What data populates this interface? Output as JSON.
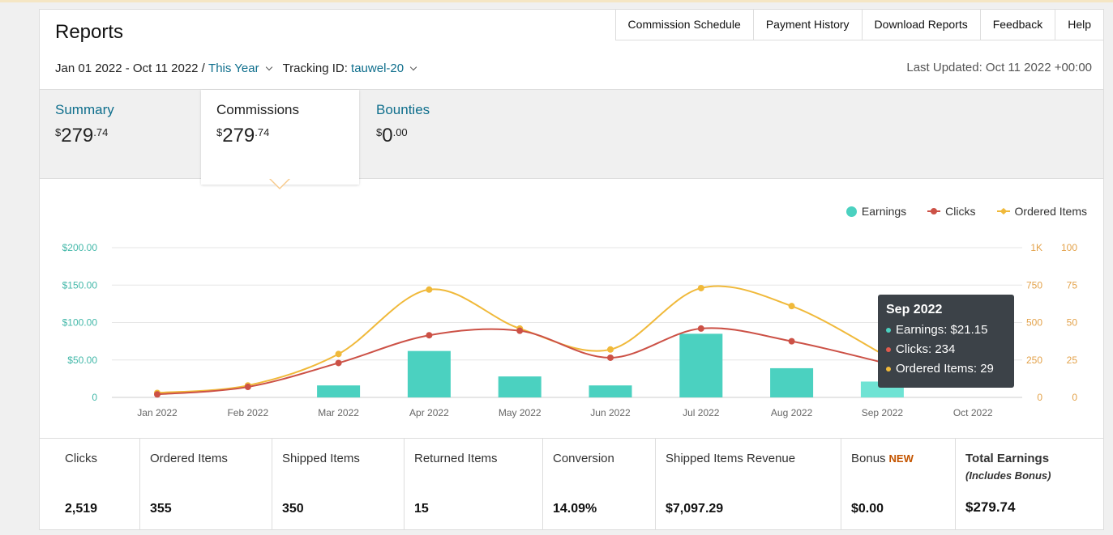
{
  "header": {
    "title": "Reports",
    "nav": [
      "Commission Schedule",
      "Payment History",
      "Download Reports",
      "Feedback",
      "Help"
    ]
  },
  "filters": {
    "date_range": "Jan 01 2022 - Oct 11 2022 /",
    "period": "This Year",
    "tracking_label": "Tracking ID:",
    "tracking_id": "tauwel-20",
    "last_updated": "Last Updated: Oct 11 2022 +00:00"
  },
  "tabs": [
    {
      "label": "Summary",
      "dollar": "$",
      "whole": "279",
      "cents": ".74"
    },
    {
      "label": "Commissions",
      "dollar": "$",
      "whole": "279",
      "cents": ".74"
    },
    {
      "label": "Bounties",
      "dollar": "$",
      "whole": "0",
      "cents": ".00"
    }
  ],
  "colors": {
    "earnings": "#4bd1c0",
    "clicks": "#cc5146",
    "ordered": "#f0b93a",
    "link": "#0e6e8c"
  },
  "chart_data": {
    "type": "bar+line",
    "categories": [
      "Jan 2022",
      "Feb 2022",
      "Mar 2022",
      "Apr 2022",
      "May 2022",
      "Jun 2022",
      "Jul 2022",
      "Aug 2022",
      "Sep 2022",
      "Oct 2022"
    ],
    "series": [
      {
        "name": "Earnings",
        "type": "bar",
        "axis": "left",
        "values": [
          0,
          0,
          16,
          62,
          28,
          16,
          85,
          39,
          21.15,
          0
        ]
      },
      {
        "name": "Clicks",
        "type": "line",
        "axis": "right-1",
        "values": [
          20,
          70,
          230,
          415,
          445,
          265,
          460,
          375,
          234,
          0
        ]
      },
      {
        "name": "Ordered Items",
        "type": "line",
        "axis": "right-2",
        "values": [
          3,
          8,
          29,
          72,
          46,
          32,
          73,
          61,
          29,
          0
        ]
      }
    ],
    "y_left_ticks": [
      "$200.00",
      "$150.00",
      "$100.00",
      "$50.00",
      "0"
    ],
    "y_left_range": [
      0,
      200
    ],
    "y_right1_ticks": [
      "1K",
      "750",
      "500",
      "250",
      "0"
    ],
    "y_right1_range": [
      0,
      1000
    ],
    "y_right2_ticks": [
      "100",
      "75",
      "50",
      "25",
      "0"
    ],
    "y_right2_range": [
      0,
      100
    ],
    "legend": "top-right",
    "grid": true
  },
  "tooltip": {
    "title": "Sep 2022",
    "earnings": "Earnings: $21.15",
    "clicks": "Clicks: 234",
    "ordered": "Ordered Items: 29"
  },
  "stats": [
    {
      "label": "Clicks",
      "value": "2,519"
    },
    {
      "label": "Ordered Items",
      "value": "355"
    },
    {
      "label": "Shipped Items",
      "value": "350"
    },
    {
      "label": "Returned Items",
      "value": "15"
    },
    {
      "label": "Conversion",
      "value": "14.09%"
    },
    {
      "label": "Shipped Items Revenue",
      "value": "$7,097.29"
    },
    {
      "label": "Bonus",
      "badge": "NEW",
      "value": "$0.00"
    },
    {
      "label": "Total Earnings",
      "sub": "(Includes Bonus)",
      "value": "$279.74"
    }
  ]
}
